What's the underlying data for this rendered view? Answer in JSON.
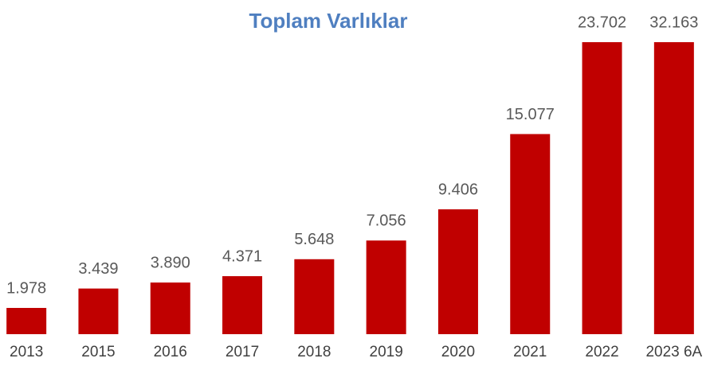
{
  "chart_data": {
    "type": "bar",
    "title": "Toplam Varlıklar",
    "categories": [
      "2013",
      "2015",
      "2016",
      "2017",
      "2018",
      "2019",
      "2020",
      "2021",
      "2022",
      "2023 6A"
    ],
    "values": [
      1978,
      3439,
      3890,
      4371,
      5648,
      7056,
      9406,
      15077,
      23702,
      32163
    ],
    "value_labels": [
      "1.978",
      "3.439",
      "3.890",
      "4.371",
      "5.648",
      "7.056",
      "9.406",
      "15.077",
      "23.702",
      "32.163"
    ],
    "color": "#c00000",
    "ylim": [
      0,
      22000
    ]
  }
}
